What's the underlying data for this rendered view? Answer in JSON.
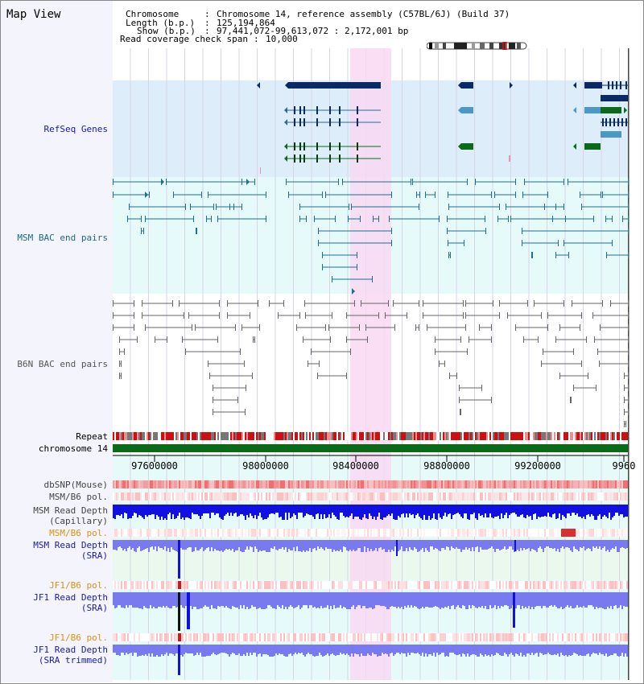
{
  "title": "Map View",
  "header": {
    "chromosome_label": "Chromosome",
    "chromosome_value": "Chromosome 14, reference assembly (C57BL/6J) (Build 37)",
    "length_label": "Length (b.p.)",
    "length_value": "125,194,864",
    "show_label": "Show (b.p.)",
    "show_value": "97,441,072-99,613,072 : 2,172,001 bp",
    "span_label": "Read coverage check span",
    "span_value": "10,000"
  },
  "tracks": {
    "refseq": "RefSeq Genes",
    "msm_bac": "MSM BAC end pairs",
    "b6n_bac": "B6N BAC end pairs",
    "repeat": "Repeat",
    "chromosome": "chromosome 14",
    "dbsnp": "dbSNP(Mouse)",
    "msm_pol1": "MSM/B6 pol.",
    "msm_depth_cap_1": "MSM Read Depth",
    "msm_depth_cap_2": "(Capillary)",
    "msm_pol2": "MSM/B6 pol.",
    "msm_depth_sra_1": "MSM Read Depth",
    "msm_depth_sra_2": "(SRA)",
    "jf1_pol1": "JF1/B6 pol.",
    "jf1_depth_1": "JF1 Read Depth",
    "jf1_depth_2": "(SRA)",
    "jf1_pol2": "JF1/B6 pol.",
    "jf1_trim_1": "JF1 Read Depth",
    "jf1_trim_2": "(SRA trimmed)"
  },
  "axis": {
    "ticks": [
      "97600000",
      "98000000",
      "98400000",
      "98800000",
      "99200000",
      "9960"
    ]
  },
  "colors": {
    "refseq_bg": "#ddeefa",
    "bac_bg": "#e6fafa",
    "highlight": "#f8d8f2",
    "gene_dark": "#0a2a66",
    "gene_light": "#4a98c8",
    "gene_green": "#0a6a18",
    "msm_bac": "#1a7090",
    "b6n_bac": "#666666",
    "chromosome": "#0a6a18",
    "depth_cap": "#1010e0",
    "depth_sra": "#7a7af0"
  }
}
